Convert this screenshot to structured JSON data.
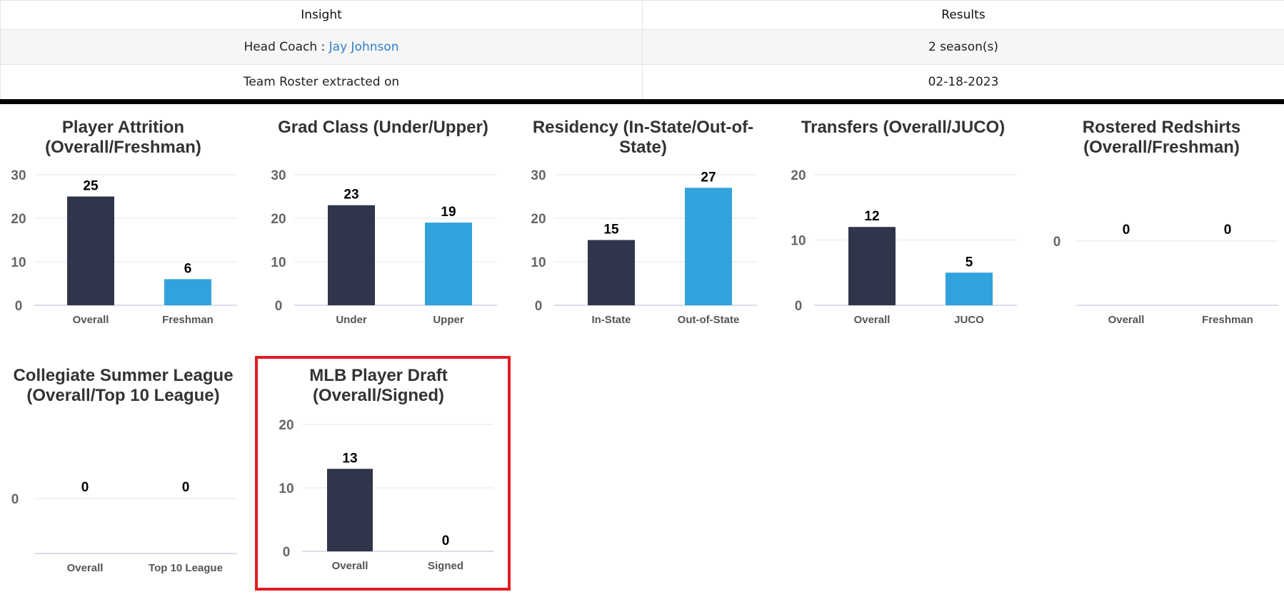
{
  "table": {
    "headers": {
      "insight": "Insight",
      "results": "Results"
    },
    "rows": [
      {
        "label": "Head Coach : ",
        "link": "Jay Johnson",
        "value": "2 season(s)"
      },
      {
        "label": "Team Roster extracted on",
        "value": "02-18-2023"
      }
    ]
  },
  "colors": {
    "primary_bar": "#30354b",
    "secondary_bar": "#31a2dc",
    "highlight": "#e31b23",
    "link": "#2f7fc9"
  },
  "chart_data": [
    {
      "type": "bar",
      "title": "Player Attrition (Overall/Freshman)",
      "categories": [
        "Overall",
        "Freshman"
      ],
      "values": [
        25,
        6
      ],
      "yticks": [
        0,
        10,
        20,
        30
      ],
      "ylim": [
        0,
        30
      ],
      "grid": true
    },
    {
      "type": "bar",
      "title": "Grad Class (Under/Upper)",
      "categories": [
        "Under",
        "Upper"
      ],
      "values": [
        23,
        19
      ],
      "yticks": [
        0,
        10,
        20,
        30
      ],
      "ylim": [
        0,
        30
      ],
      "grid": true
    },
    {
      "type": "bar",
      "title": "Residency (In-State/Out-of-State)",
      "categories": [
        "In-State",
        "Out-of-State"
      ],
      "values": [
        15,
        27
      ],
      "yticks": [
        0,
        10,
        20,
        30
      ],
      "ylim": [
        0,
        30
      ],
      "grid": true
    },
    {
      "type": "bar",
      "title": "Transfers (Overall/JUCO)",
      "categories": [
        "Overall",
        "JUCO"
      ],
      "values": [
        12,
        5
      ],
      "yticks": [
        0,
        10,
        20
      ],
      "ylim": [
        0,
        20
      ],
      "grid": true
    },
    {
      "type": "bar",
      "title": "Rostered Redshirts (Overall/Freshman)",
      "categories": [
        "Overall",
        "Freshman"
      ],
      "values": [
        0,
        0
      ],
      "yticks": [
        0
      ],
      "grid": true
    },
    {
      "type": "bar",
      "title": "Collegiate Summer League (Overall/Top 10 League)",
      "categories": [
        "Overall",
        "Top 10 League"
      ],
      "values": [
        0,
        0
      ],
      "yticks": [
        0
      ],
      "grid": true
    },
    {
      "type": "bar",
      "title": "MLB Player Draft (Overall/Signed)",
      "categories": [
        "Overall",
        "Signed"
      ],
      "values": [
        13,
        0
      ],
      "yticks": [
        0,
        10,
        20
      ],
      "ylim": [
        0,
        20
      ],
      "grid": true,
      "highlighted": true
    }
  ]
}
